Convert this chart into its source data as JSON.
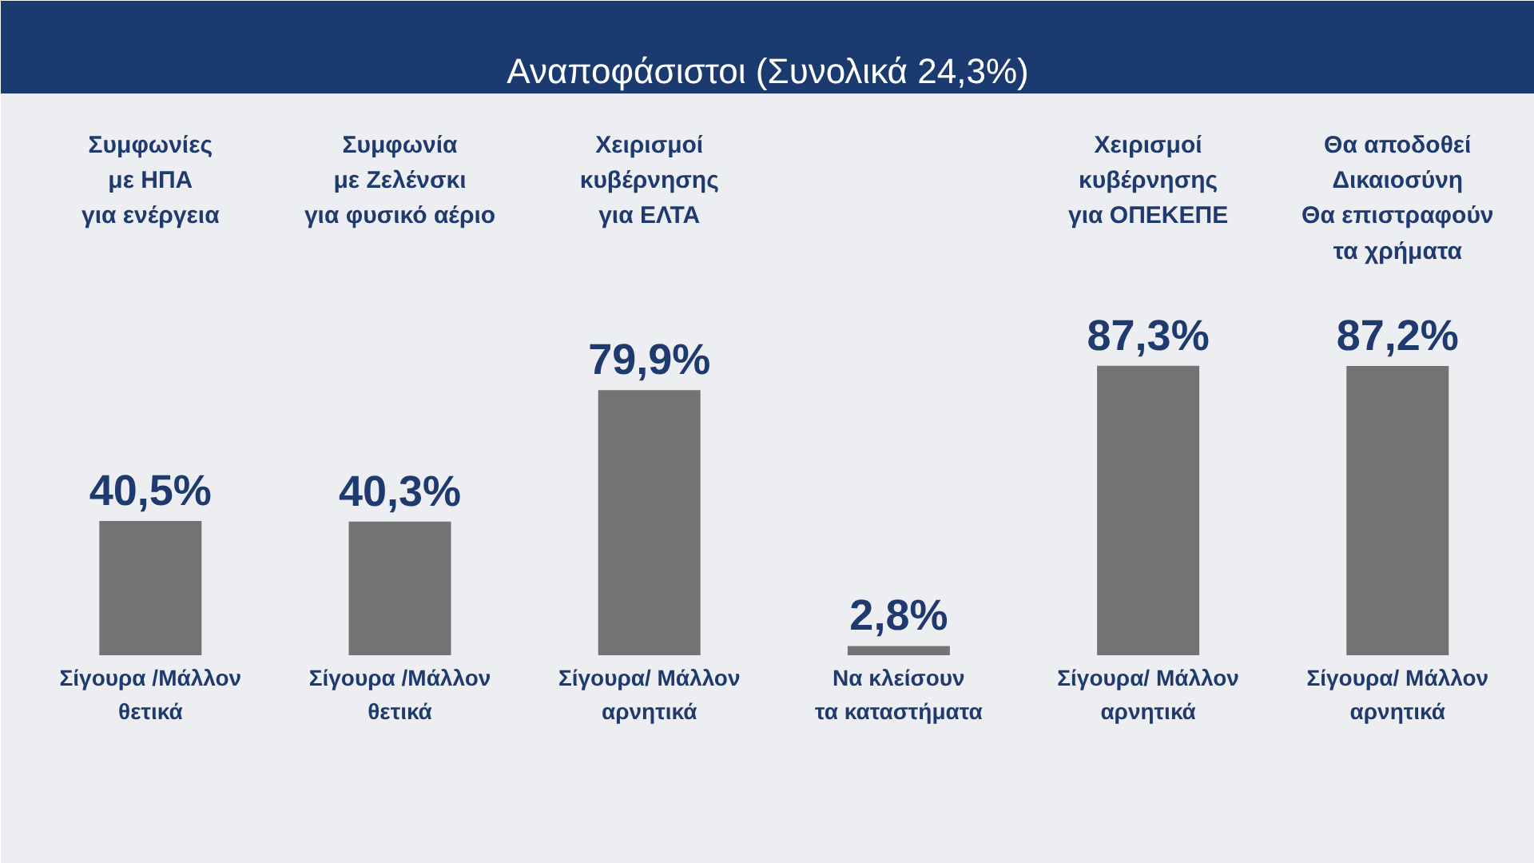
{
  "chart_data": {
    "type": "bar",
    "title": "Αναποφάσιστοι (Συνολικά 24,3%)",
    "categories": [
      "Συμφωνίες\nμε ΗΠΑ\nγια ενέργεια",
      "Συμφωνία\nμε Ζελένσκι\nγια φυσικό αέριο",
      "Χειρισμοί\nκυβέρνησης\nγια ΕΛΤΑ",
      null,
      "Χειρισμοί\nκυβέρνησης\nγια ΟΠΕΚΕΠΕ",
      "Θα αποδοθεί\nΔικαιοσύνη\nΘα επιστραφούν\nτα χρήματα"
    ],
    "values": [
      40.5,
      40.3,
      79.9,
      2.8,
      87.3,
      87.2
    ],
    "value_labels": [
      "40,5%",
      "40,3%",
      "79,9%",
      "2,8%",
      "87,3%",
      "87,2%"
    ],
    "color": "#737373",
    "annotations": [
      "Σίγουρα /Μάλλον\nθετικά",
      "Σίγουρα /Μάλλον\nθετικά",
      "Σίγουρα/ Μάλλον\nαρνητικά",
      "Να κλείσουν\nτα καταστήματα",
      "Σίγουρα/ Μάλλον\nαρνητικά",
      "Σίγουρα/ Μάλλον\nαρνητικά"
    ]
  }
}
